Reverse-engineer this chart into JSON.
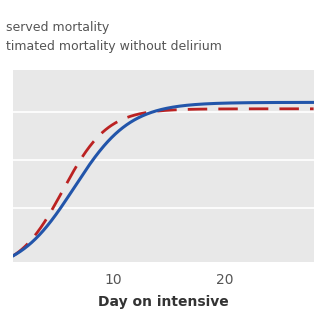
{
  "legend_line1": "served mortality",
  "legend_line2": "timated mortality without delirium",
  "xlabel": "Day on intensive",
  "xticks": [
    10,
    20
  ],
  "xlim": [
    1,
    28
  ],
  "ylim": [
    -0.02,
    0.58
  ],
  "background_color": "#e8e8e8",
  "outer_background": "#ffffff",
  "blue_color": "#2255aa",
  "red_color": "#bb2222",
  "legend_text_color": "#555555",
  "axis_text_color": "#555555",
  "xlabel_color": "#333333"
}
